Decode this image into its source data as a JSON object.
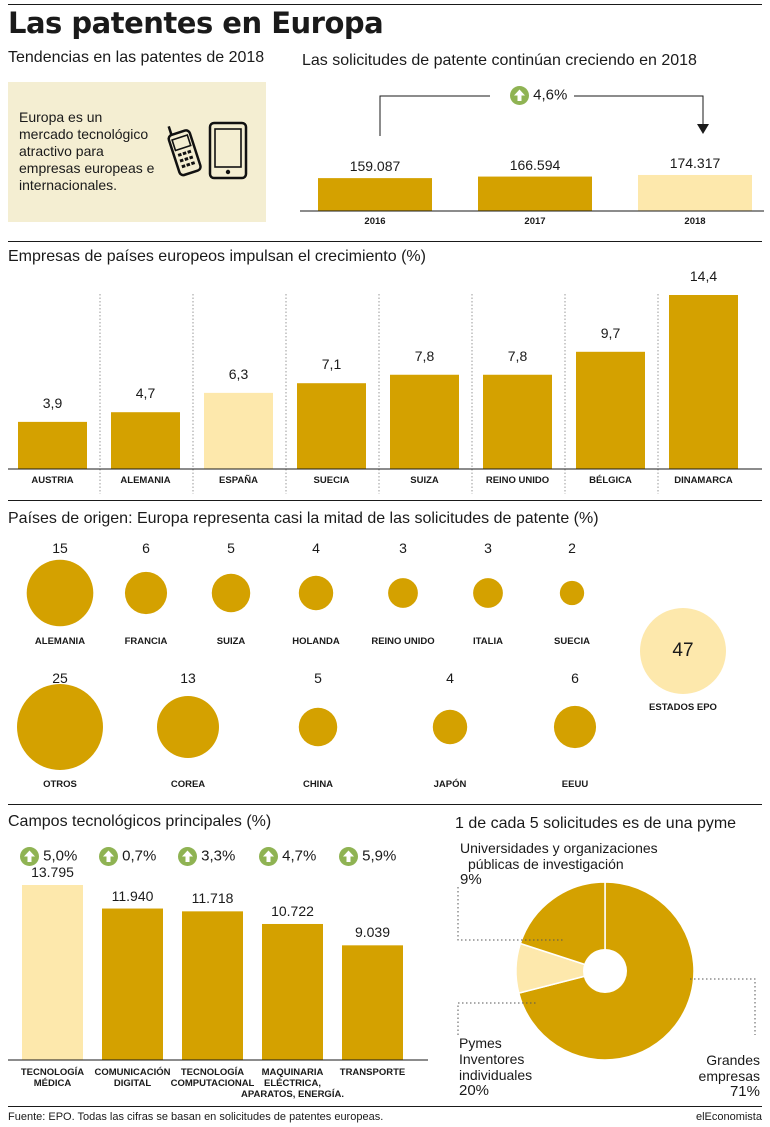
{
  "header": {
    "title": "Las patentes en Europa",
    "subtitle": "Tendencias en las patentes de 2018",
    "info_text": "Europa es un mercado tecnológico atractivo para empresas europeas e internacionales."
  },
  "footer": {
    "source": "Fuente: EPO. Todas las cifras se basan en solicitudes de patentes europeas.",
    "brand": "elEconomista"
  },
  "colors": {
    "gold": "#d4a100",
    "highlight": "#fde8ac",
    "growth_arrow": "#8fb353",
    "info_bg": "#f4eed2"
  },
  "icons": [
    "mobile-phone-icon",
    "tablet-icon",
    "up-arrow-icon"
  ],
  "chart_data": [
    {
      "id": "applications",
      "type": "bar",
      "title": "Las solicitudes de patente continúan creciendo en 2018",
      "categories": [
        "2016",
        "2017",
        "2018"
      ],
      "values": [
        159087,
        166594,
        174317
      ],
      "value_labels": [
        "159.087",
        "166.594",
        "174.317"
      ],
      "highlight": "2018",
      "growth_label": "4,6%"
    },
    {
      "id": "countries",
      "type": "bar",
      "title": "Empresas de países europeos impulsan el crecimiento (%)",
      "categories": [
        "AUSTRIA",
        "ALEMANIA",
        "ESPAÑA",
        "SUECIA",
        "SUIZA",
        "REINO UNIDO",
        "BÉLGICA",
        "DINAMARCA"
      ],
      "values": [
        3.9,
        4.7,
        6.3,
        7.1,
        7.8,
        7.8,
        9.7,
        14.4
      ],
      "value_labels": [
        "3,9",
        "4,7",
        "6,3",
        "7,1",
        "7,8",
        "7,8",
        "9,7",
        "14,4"
      ],
      "highlight": "ESPAÑA"
    },
    {
      "id": "origin",
      "type": "bubble",
      "title": "Países de origen: Europa representa casi la mitad de las solicitudes de patente (%)",
      "row1": [
        {
          "label": "ALEMANIA",
          "value": 15
        },
        {
          "label": "FRANCIA",
          "value": 6
        },
        {
          "label": "SUIZA",
          "value": 5
        },
        {
          "label": "HOLANDA",
          "value": 4
        },
        {
          "label": "REINO UNIDO",
          "value": 3
        },
        {
          "label": "ITALIA",
          "value": 3
        },
        {
          "label": "SUECIA",
          "value": 2
        }
      ],
      "row2": [
        {
          "label": "OTROS",
          "value": 25
        },
        {
          "label": "COREA",
          "value": 13
        },
        {
          "label": "CHINA",
          "value": 5
        },
        {
          "label": "JAPÓN",
          "value": 4
        },
        {
          "label": "EEUU",
          "value": 6
        }
      ],
      "total": {
        "label": "ESTADOS EPO",
        "value": 47
      }
    },
    {
      "id": "fields",
      "type": "bar",
      "title": "Campos tecnológicos principales (%)",
      "categories": [
        "TECNOLOGÍA MÉDICA",
        "COMUNICACIÓN DIGITAL",
        "TECNOLOGÍA COMPUTACIONAL",
        "MAQUINARIA ELÉCTRICA, APARATOS, ENERGÍA.",
        "TRANSPORTE"
      ],
      "category_lines": [
        [
          "TECNOLOGÍA",
          "MÉDICA"
        ],
        [
          "COMUNICACIÓN",
          "DIGITAL"
        ],
        [
          "TECNOLOGÍA",
          "COMPUTACIONAL"
        ],
        [
          "MAQUINARIA",
          "ELÉCTRICA,",
          "APARATOS, ENERGÍA."
        ],
        [
          "TRANSPORTE"
        ]
      ],
      "values": [
        13795,
        11940,
        11718,
        10722,
        9039
      ],
      "value_labels": [
        "13.795",
        "11.940",
        "11.718",
        "10.722",
        "9.039"
      ],
      "growth": [
        "5,0%",
        "0,7%",
        "3,3%",
        "4,7%",
        "5,9%"
      ],
      "highlight": "TECNOLOGÍA MÉDICA"
    },
    {
      "id": "applicants",
      "type": "pie",
      "title": "1 de cada 5 solicitudes es de una pyme",
      "slices": [
        {
          "label_lines": [
            "Grandes",
            "empresas"
          ],
          "pct_label": "71%",
          "value": 71
        },
        {
          "label_lines": [
            "Universidades y organizaciones",
            "públicas de investigación"
          ],
          "pct_label": "9%",
          "value": 9
        },
        {
          "label_lines": [
            "Pymes",
            "Inventores",
            "individuales"
          ],
          "pct_label": "20%",
          "value": 20
        }
      ]
    }
  ]
}
